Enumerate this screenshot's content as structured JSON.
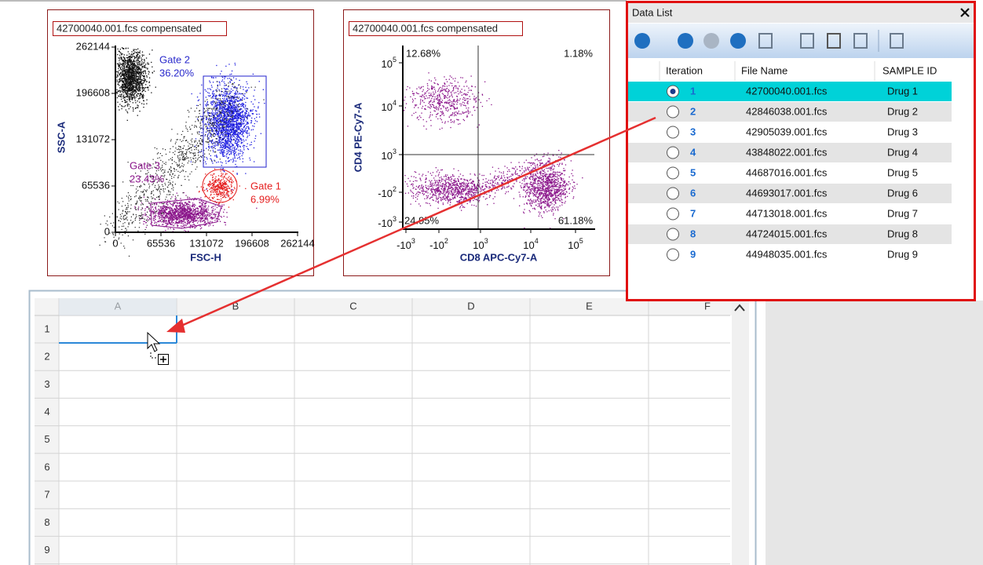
{
  "plots": [
    {
      "title": "42700040.001.fcs compensated",
      "y_label": "SSC-A",
      "x_label": "FSC-H",
      "y_ticks": [
        "262144",
        "196608",
        "131072",
        "65536",
        "0"
      ],
      "x_ticks": [
        "0",
        "65536",
        "131072",
        "196608",
        "262144"
      ],
      "gates": [
        {
          "name": "Gate 2",
          "percent": "36.20%"
        },
        {
          "name": "Gate 3",
          "percent": "23.43%"
        },
        {
          "name": "Gate 1",
          "percent": "6.99%"
        }
      ]
    },
    {
      "title": "42700040.001.fcs compensated",
      "y_label": "CD4 PE-Cy7-A",
      "x_label": "CD8 APC-Cy7-A",
      "y_ticks": [
        {
          "base": "10",
          "exp": "5"
        },
        {
          "base": "10",
          "exp": "4"
        },
        {
          "base": "10",
          "exp": "3"
        },
        {
          "base": "-10",
          "exp": "2"
        },
        {
          "base": "-10",
          "exp": "3"
        }
      ],
      "x_ticks": [
        {
          "base": "-10",
          "exp": "3"
        },
        {
          "base": "-10",
          "exp": "2"
        },
        {
          "base": "10",
          "exp": "3"
        },
        {
          "base": "10",
          "exp": "4"
        },
        {
          "base": "10",
          "exp": "5"
        }
      ],
      "quadrants": [
        "12.68%",
        "1.18%",
        "24.95%",
        "61.18%"
      ]
    }
  ],
  "data_list": {
    "title": "Data List",
    "columns": [
      "Iteration",
      "File Name",
      "SAMPLE ID"
    ],
    "rows": [
      [
        "1",
        "42700040.001.fcs",
        "Drug 1"
      ],
      [
        "2",
        "42846038.001.fcs",
        "Drug 2"
      ],
      [
        "3",
        "42905039.001.fcs",
        "Drug 3"
      ],
      [
        "4",
        "43848022.001.fcs",
        "Drug 4"
      ],
      [
        "5",
        "44687016.001.fcs",
        "Drug 5"
      ],
      [
        "6",
        "44693017.001.fcs",
        "Drug 6"
      ],
      [
        "7",
        "44713018.001.fcs",
        "Drug 7"
      ],
      [
        "8",
        "44724015.001.fcs",
        "Drug 8"
      ],
      [
        "9",
        "44948035.001.fcs",
        "Drug 9"
      ]
    ]
  },
  "spreadsheet": {
    "columns": [
      "A",
      "B",
      "C",
      "D",
      "E",
      "F"
    ],
    "rows": [
      "1",
      "2",
      "3",
      "4",
      "5",
      "6",
      "7",
      "8",
      "9"
    ]
  }
}
